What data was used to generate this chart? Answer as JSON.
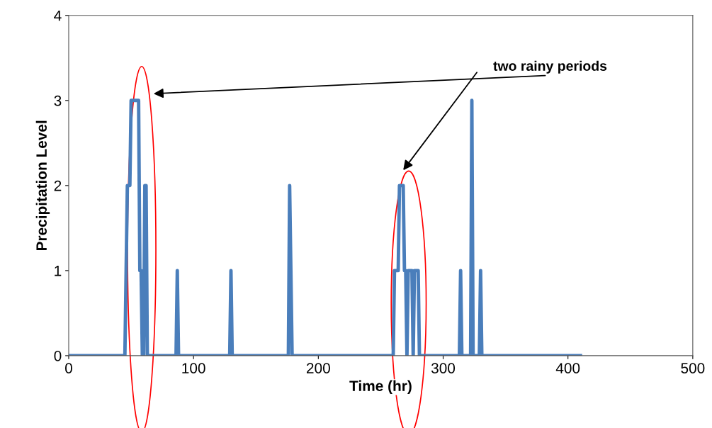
{
  "chart_data": {
    "type": "line",
    "xlabel": "Time (hr)",
    "ylabel": "Precipitation Level",
    "annotations": [
      "two rainy periods"
    ],
    "series": [
      {
        "color": "#4a7ebb",
        "x": [
          1,
          45,
          46,
          47,
          49,
          50,
          56,
          57,
          58,
          59,
          60,
          61,
          62,
          63,
          86,
          87,
          88,
          129,
          130,
          131,
          176,
          177,
          178,
          179,
          260,
          261,
          264,
          265,
          268,
          269,
          270,
          271,
          272,
          275,
          276,
          277,
          280,
          281,
          313,
          314,
          315,
          322,
          323,
          324,
          329,
          330,
          331,
          410
        ],
        "values": [
          0,
          0,
          1,
          2,
          2,
          3,
          3,
          1,
          1,
          0,
          0,
          2,
          2,
          0,
          0,
          1,
          0,
          0,
          1,
          0,
          0,
          2,
          1,
          0,
          0,
          1,
          1,
          2,
          2,
          1,
          1,
          0,
          1,
          1,
          0,
          1,
          1,
          0,
          0,
          1,
          0,
          0,
          3,
          0,
          0,
          1,
          0,
          0
        ]
      }
    ],
    "xlim": [
      0,
      500
    ],
    "xticks": [
      0,
      100,
      200,
      300,
      400,
      500
    ],
    "ylim": [
      0,
      4
    ],
    "yticks": [
      0,
      1,
      2,
      3,
      4
    ],
    "grid": false,
    "marker": "none",
    "line_style": "solid"
  }
}
